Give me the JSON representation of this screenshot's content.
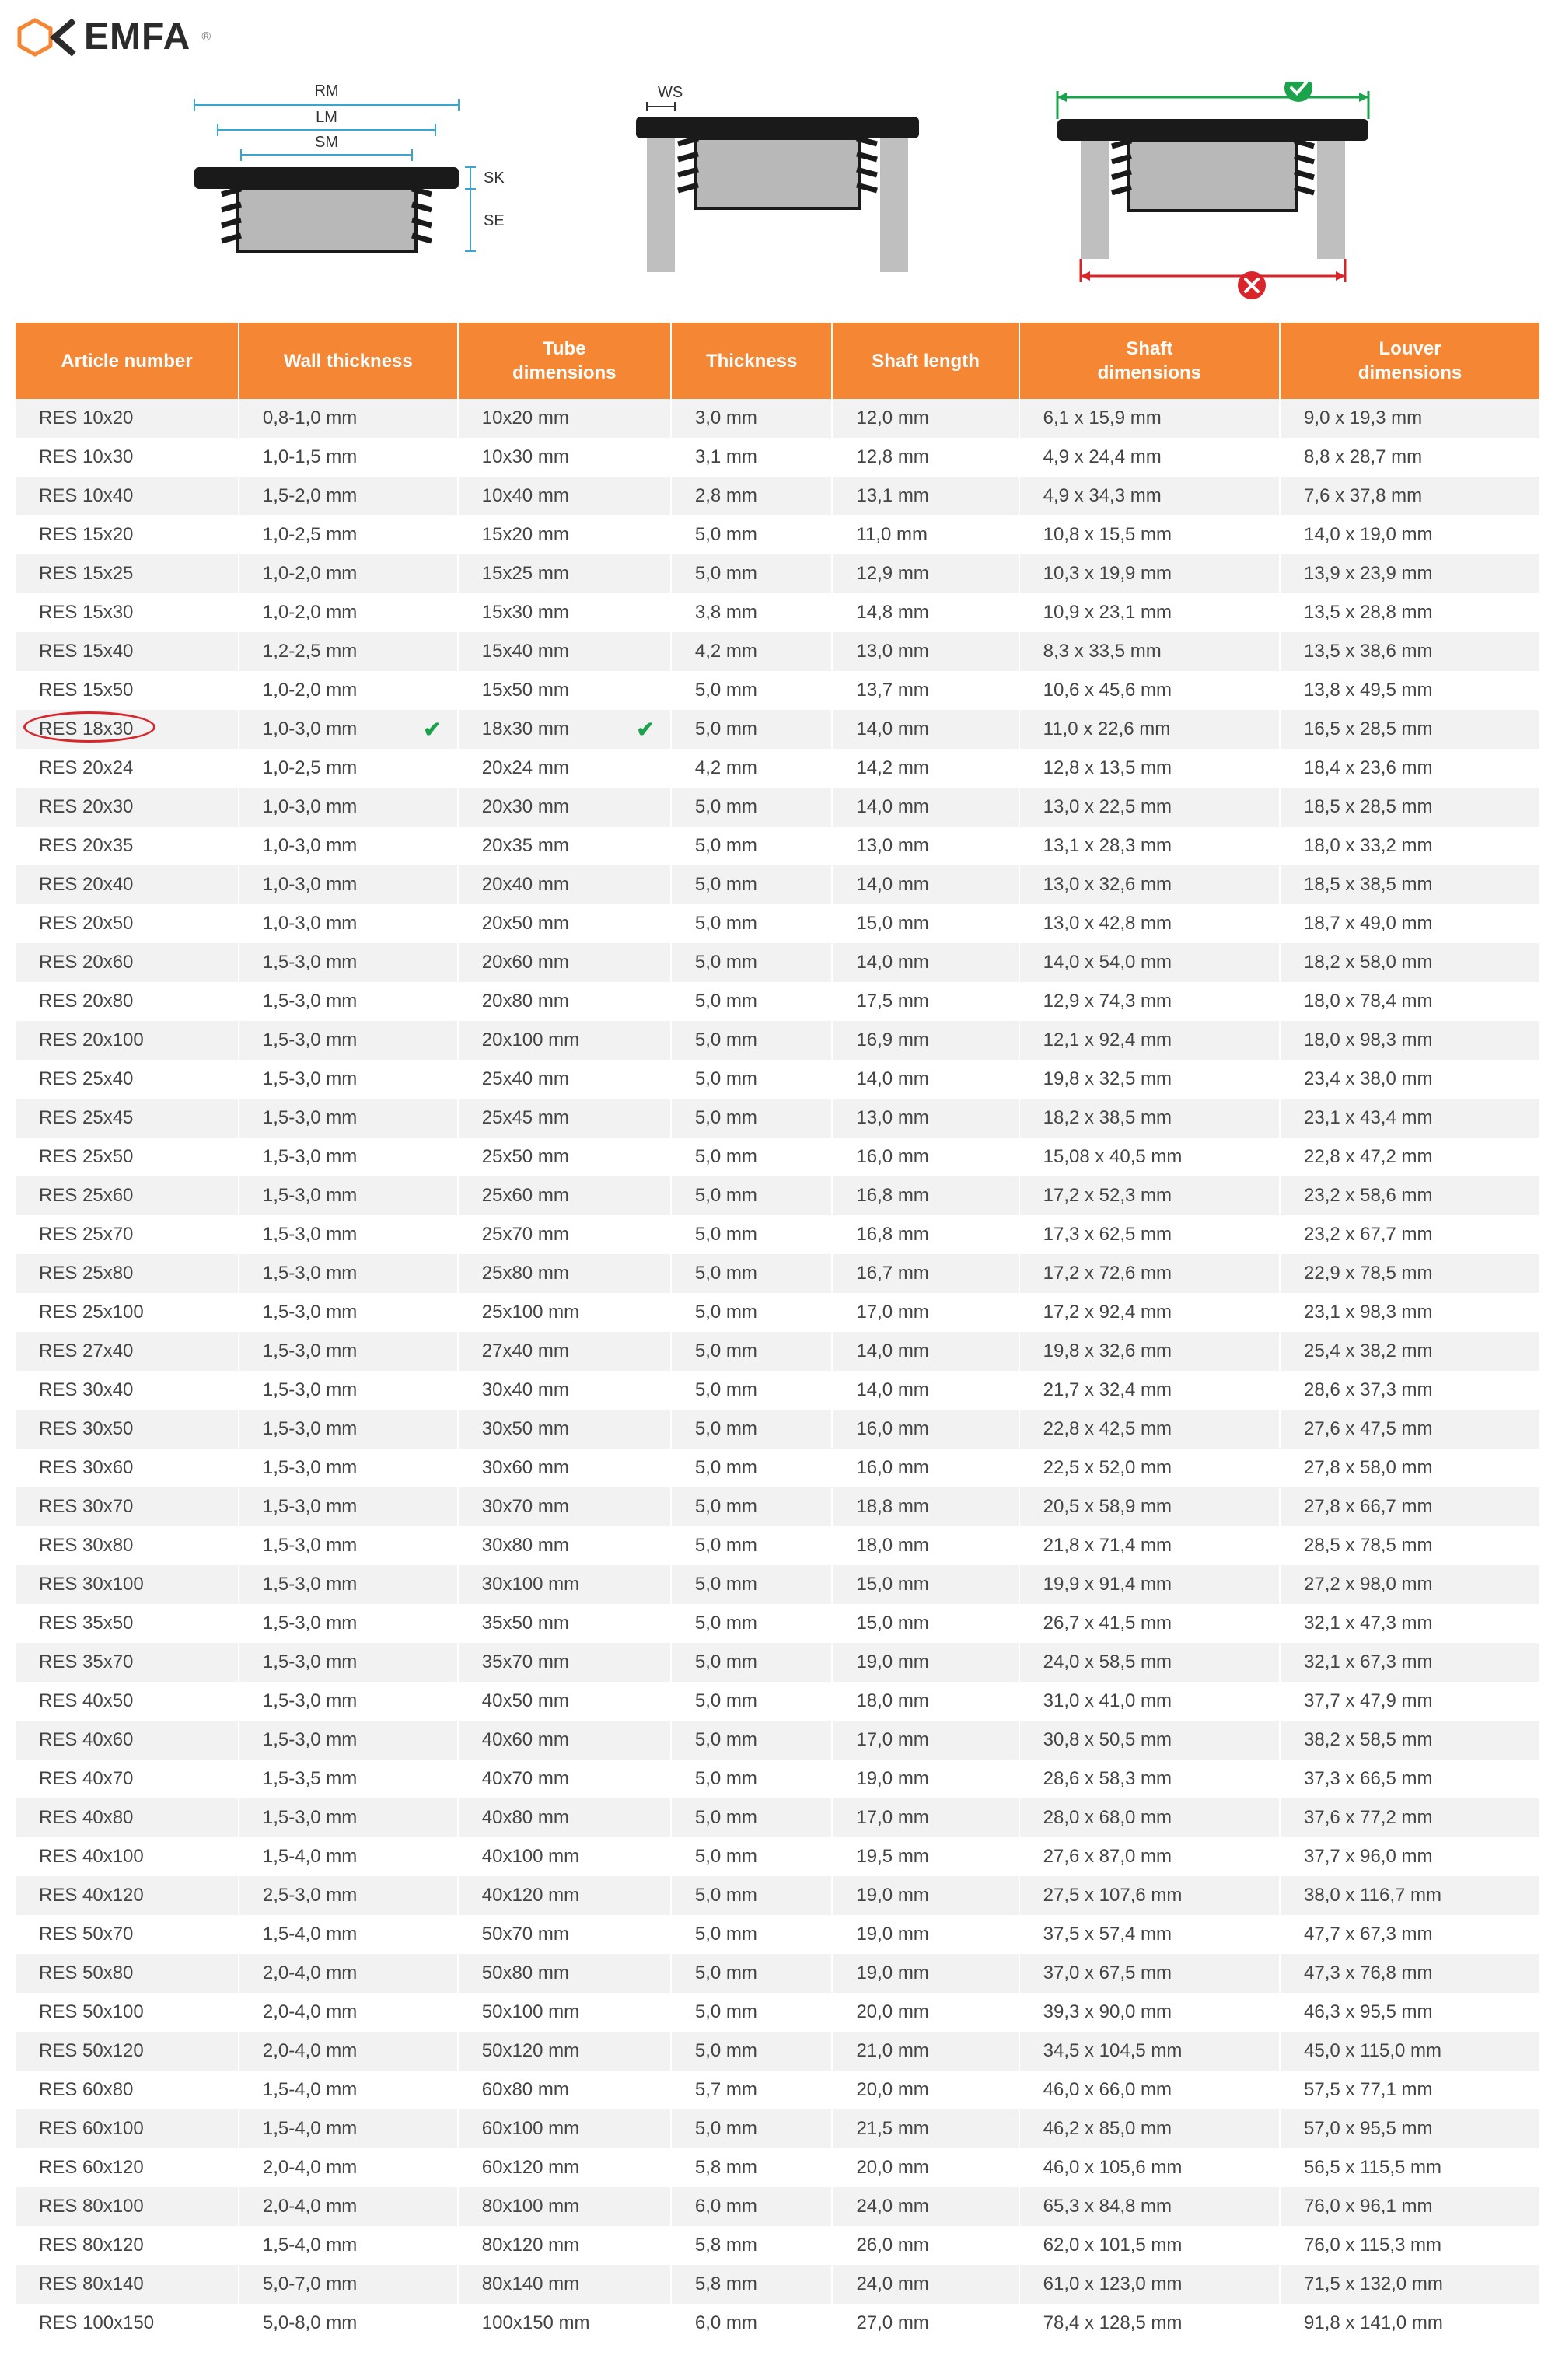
{
  "brand": "EMFA",
  "diagram_labels": {
    "rm": "RM",
    "lm": "LM",
    "sm": "SM",
    "sk": "SK",
    "se": "SE",
    "ws": "WS"
  },
  "colors": {
    "header_bg": "#f58634",
    "header_text": "#ffffff",
    "row_odd": "#f2f2f2",
    "row_even": "#ffffff",
    "highlight_border": "#d9252a",
    "check_color": "#1aa34a",
    "logo_hex": "#f58634",
    "logo_arrow": "#2b2b2b",
    "cross_red": "#d9252a"
  },
  "columns": [
    "Article number",
    "Wall thickness",
    "Tube dimensions",
    "Thickness",
    "Shaft length",
    "Shaft dimensions",
    "Louver dimensions"
  ],
  "highlight_row_index": 8,
  "rows": [
    [
      "RES 10x20",
      "0,8-1,0 mm",
      "10x20 mm",
      "3,0 mm",
      "12,0 mm",
      "6,1 x 15,9 mm",
      "9,0 x 19,3 mm"
    ],
    [
      "RES 10x30",
      "1,0-1,5 mm",
      "10x30 mm",
      "3,1 mm",
      "12,8 mm",
      "4,9 x 24,4 mm",
      "8,8 x 28,7 mm"
    ],
    [
      "RES 10x40",
      "1,5-2,0 mm",
      "10x40 mm",
      "2,8 mm",
      "13,1 mm",
      "4,9 x 34,3 mm",
      "7,6 x 37,8 mm"
    ],
    [
      "RES 15x20",
      "1,0-2,5 mm",
      "15x20 mm",
      "5,0 mm",
      "11,0 mm",
      "10,8 x 15,5 mm",
      "14,0 x 19,0 mm"
    ],
    [
      "RES 15x25",
      "1,0-2,0 mm",
      "15x25 mm",
      "5,0 mm",
      "12,9 mm",
      "10,3 x 19,9 mm",
      "13,9 x 23,9 mm"
    ],
    [
      "RES 15x30",
      "1,0-2,0 mm",
      "15x30 mm",
      "3,8 mm",
      "14,8 mm",
      "10,9 x 23,1 mm",
      "13,5 x 28,8 mm"
    ],
    [
      "RES 15x40",
      "1,2-2,5 mm",
      "15x40 mm",
      "4,2 mm",
      "13,0 mm",
      "8,3 x 33,5 mm",
      "13,5 x 38,6 mm"
    ],
    [
      "RES 15x50",
      "1,0-2,0 mm",
      "15x50 mm",
      "5,0 mm",
      "13,7 mm",
      "10,6 x 45,6 mm",
      "13,8 x 49,5 mm"
    ],
    [
      "RES 18x30",
      "1,0-3,0 mm",
      "18x30 mm",
      "5,0 mm",
      "14,0 mm",
      "11,0 x 22,6 mm",
      "16,5 x 28,5 mm"
    ],
    [
      "RES 20x24",
      "1,0-2,5 mm",
      "20x24 mm",
      "4,2 mm",
      "14,2 mm",
      "12,8 x 13,5 mm",
      "18,4 x 23,6 mm"
    ],
    [
      "RES 20x30",
      "1,0-3,0 mm",
      "20x30 mm",
      "5,0 mm",
      "14,0 mm",
      "13,0 x 22,5 mm",
      "18,5 x 28,5 mm"
    ],
    [
      "RES 20x35",
      "1,0-3,0 mm",
      "20x35 mm",
      "5,0 mm",
      "13,0 mm",
      "13,1 x 28,3 mm",
      "18,0 x 33,2 mm"
    ],
    [
      "RES 20x40",
      "1,0-3,0 mm",
      "20x40 mm",
      "5,0 mm",
      "14,0 mm",
      "13,0 x 32,6 mm",
      "18,5 x 38,5 mm"
    ],
    [
      "RES 20x50",
      "1,0-3,0 mm",
      "20x50 mm",
      "5,0 mm",
      "15,0 mm",
      "13,0 x 42,8 mm",
      "18,7 x 49,0 mm"
    ],
    [
      "RES 20x60",
      "1,5-3,0 mm",
      "20x60 mm",
      "5,0 mm",
      "14,0 mm",
      "14,0 x 54,0 mm",
      "18,2 x 58,0 mm"
    ],
    [
      "RES 20x80",
      "1,5-3,0 mm",
      "20x80 mm",
      "5,0 mm",
      "17,5 mm",
      "12,9 x 74,3 mm",
      "18,0 x 78,4 mm"
    ],
    [
      "RES 20x100",
      "1,5-3,0 mm",
      "20x100 mm",
      "5,0 mm",
      "16,9 mm",
      "12,1 x 92,4 mm",
      "18,0 x 98,3 mm"
    ],
    [
      "RES 25x40",
      "1,5-3,0 mm",
      "25x40 mm",
      "5,0 mm",
      "14,0 mm",
      "19,8 x 32,5 mm",
      "23,4 x 38,0 mm"
    ],
    [
      "RES 25x45",
      "1,5-3,0 mm",
      "25x45 mm",
      "5,0 mm",
      "13,0 mm",
      "18,2 x 38,5 mm",
      "23,1 x 43,4 mm"
    ],
    [
      "RES 25x50",
      "1,5-3,0 mm",
      "25x50 mm",
      "5,0 mm",
      "16,0 mm",
      "15,08 x 40,5 mm",
      "22,8 x 47,2 mm"
    ],
    [
      "RES 25x60",
      "1,5-3,0 mm",
      "25x60 mm",
      "5,0 mm",
      "16,8 mm",
      "17,2 x 52,3 mm",
      "23,2 x 58,6 mm"
    ],
    [
      "RES 25x70",
      "1,5-3,0 mm",
      "25x70 mm",
      "5,0 mm",
      "16,8 mm",
      "17,3 x 62,5 mm",
      "23,2 x 67,7 mm"
    ],
    [
      "RES 25x80",
      "1,5-3,0 mm",
      "25x80 mm",
      "5,0 mm",
      "16,7 mm",
      "17,2 x 72,6 mm",
      "22,9 x 78,5 mm"
    ],
    [
      "RES 25x100",
      "1,5-3,0 mm",
      "25x100 mm",
      "5,0 mm",
      "17,0 mm",
      "17,2 x 92,4 mm",
      "23,1 x 98,3 mm"
    ],
    [
      "RES 27x40",
      "1,5-3,0 mm",
      "27x40 mm",
      "5,0 mm",
      "14,0 mm",
      "19,8 x 32,6 mm",
      "25,4 x 38,2 mm"
    ],
    [
      "RES 30x40",
      "1,5-3,0 mm",
      "30x40 mm",
      "5,0 mm",
      "14,0 mm",
      "21,7 x 32,4 mm",
      "28,6 x 37,3 mm"
    ],
    [
      "RES 30x50",
      "1,5-3,0 mm",
      "30x50 mm",
      "5,0 mm",
      "16,0 mm",
      "22,8 x 42,5 mm",
      "27,6 x 47,5 mm"
    ],
    [
      "RES 30x60",
      "1,5-3,0 mm",
      "30x60 mm",
      "5,0 mm",
      "16,0 mm",
      "22,5 x 52,0 mm",
      "27,8 x 58,0 mm"
    ],
    [
      "RES 30x70",
      "1,5-3,0 mm",
      "30x70 mm",
      "5,0 mm",
      "18,8 mm",
      "20,5 x 58,9 mm",
      "27,8 x 66,7 mm"
    ],
    [
      "RES 30x80",
      "1,5-3,0 mm",
      "30x80 mm",
      "5,0 mm",
      "18,0 mm",
      "21,8 x 71,4 mm",
      "28,5 x 78,5 mm"
    ],
    [
      "RES 30x100",
      "1,5-3,0 mm",
      "30x100 mm",
      "5,0 mm",
      "15,0 mm",
      "19,9 x 91,4 mm",
      "27,2 x 98,0 mm"
    ],
    [
      "RES 35x50",
      "1,5-3,0 mm",
      "35x50 mm",
      "5,0 mm",
      "15,0 mm",
      "26,7 x 41,5 mm",
      "32,1 x 47,3 mm"
    ],
    [
      "RES 35x70",
      "1,5-3,0 mm",
      "35x70 mm",
      "5,0 mm",
      "19,0 mm",
      "24,0 x 58,5 mm",
      "32,1 x 67,3 mm"
    ],
    [
      "RES 40x50",
      "1,5-3,0 mm",
      "40x50 mm",
      "5,0 mm",
      "18,0 mm",
      "31,0 x 41,0 mm",
      "37,7 x 47,9 mm"
    ],
    [
      "RES 40x60",
      "1,5-3,0 mm",
      "40x60 mm",
      "5,0 mm",
      "17,0 mm",
      "30,8 x 50,5 mm",
      "38,2 x 58,5 mm"
    ],
    [
      "RES 40x70",
      "1,5-3,5 mm",
      "40x70 mm",
      "5,0 mm",
      "19,0 mm",
      "28,6 x 58,3 mm",
      "37,3 x 66,5 mm"
    ],
    [
      "RES 40x80",
      "1,5-3,0 mm",
      "40x80 mm",
      "5,0 mm",
      "17,0 mm",
      "28,0 x 68,0 mm",
      "37,6 x 77,2 mm"
    ],
    [
      "RES 40x100",
      "1,5-4,0 mm",
      "40x100 mm",
      "5,0 mm",
      "19,5 mm",
      "27,6 x 87,0 mm",
      "37,7 x 96,0 mm"
    ],
    [
      "RES 40x120",
      "2,5-3,0 mm",
      "40x120 mm",
      "5,0 mm",
      "19,0 mm",
      "27,5 x 107,6 mm",
      "38,0 x 116,7 mm"
    ],
    [
      "RES 50x70",
      "1,5-4,0 mm",
      "50x70 mm",
      "5,0 mm",
      "19,0 mm",
      "37,5 x 57,4 mm",
      "47,7 x 67,3 mm"
    ],
    [
      "RES 50x80",
      "2,0-4,0 mm",
      "50x80 mm",
      "5,0 mm",
      "19,0 mm",
      "37,0 x 67,5 mm",
      "47,3 x 76,8 mm"
    ],
    [
      "RES 50x100",
      "2,0-4,0 mm",
      "50x100 mm",
      "5,0 mm",
      "20,0 mm",
      "39,3 x 90,0 mm",
      "46,3 x 95,5 mm"
    ],
    [
      "RES 50x120",
      "2,0-4,0 mm",
      "50x120 mm",
      "5,0 mm",
      "21,0 mm",
      "34,5 x 104,5 mm",
      "45,0 x 115,0 mm"
    ],
    [
      "RES 60x80",
      "1,5-4,0 mm",
      "60x80 mm",
      "5,7 mm",
      "20,0 mm",
      "46,0 x 66,0 mm",
      "57,5 x 77,1 mm"
    ],
    [
      "RES 60x100",
      "1,5-4,0 mm",
      "60x100 mm",
      "5,0 mm",
      "21,5 mm",
      "46,2 x 85,0 mm",
      "57,0 x 95,5 mm"
    ],
    [
      "RES 60x120",
      "2,0-4,0 mm",
      "60x120 mm",
      "5,8 mm",
      "20,0 mm",
      "46,0 x 105,6 mm",
      "56,5 x 115,5 mm"
    ],
    [
      "RES 80x100",
      "2,0-4,0 mm",
      "80x100 mm",
      "6,0 mm",
      "24,0 mm",
      "65,3 x 84,8 mm",
      "76,0 x 96,1 mm"
    ],
    [
      "RES 80x120",
      "1,5-4,0 mm",
      "80x120 mm",
      "5,8 mm",
      "26,0 mm",
      "62,0 x 101,5 mm",
      "76,0 x 115,3 mm"
    ],
    [
      "RES 80x140",
      "5,0-7,0 mm",
      "80x140 mm",
      "5,8 mm",
      "24,0 mm",
      "61,0 x 123,0 mm",
      "71,5 x 132,0 mm"
    ],
    [
      "RES 100x150",
      "5,0-8,0 mm",
      "100x150 mm",
      "6,0 mm",
      "27,0 mm",
      "78,4 x 128,5 mm",
      "91,8 x 141,0 mm"
    ]
  ]
}
